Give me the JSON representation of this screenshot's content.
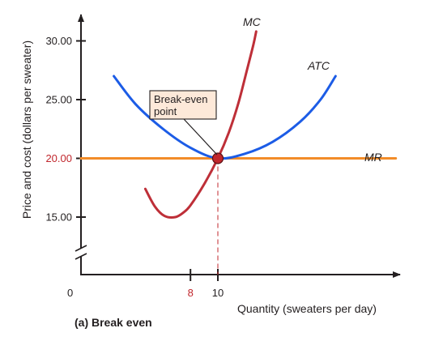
{
  "chart_data": {
    "type": "line",
    "caption": "(a) Break even",
    "xlabel": "Quantity (sweaters per day)",
    "ylabel": "Price and cost (dollars per sweater)",
    "origin_label": "0",
    "x_ticks": [
      {
        "value": 8,
        "label": "8",
        "highlight": true
      },
      {
        "value": 10,
        "label": "10",
        "highlight": false
      }
    ],
    "y_ticks": [
      {
        "value": 15,
        "label": "15.00",
        "highlight": false
      },
      {
        "value": 20,
        "label": "20.00",
        "highlight": true
      },
      {
        "value": 25,
        "label": "25.00",
        "highlight": false
      },
      {
        "value": 30,
        "label": "30.00",
        "highlight": false
      }
    ],
    "xlim": [
      0,
      26
    ],
    "ylim": [
      13.5,
      31.5
    ],
    "axis_break": true,
    "series": [
      {
        "name": "MC",
        "color": "#be2f38",
        "points": [
          [
            4.7,
            17.4
          ],
          [
            5.4,
            15.9
          ],
          [
            6.1,
            15.1
          ],
          [
            6.9,
            15.0
          ],
          [
            7.5,
            15.4
          ],
          [
            8.0,
            16.0
          ],
          [
            9.0,
            17.8
          ],
          [
            10.0,
            20.0
          ],
          [
            10.8,
            22.2
          ],
          [
            11.5,
            24.7
          ],
          [
            12.1,
            27.4
          ],
          [
            12.6,
            29.7
          ],
          [
            12.8,
            30.8
          ]
        ]
      },
      {
        "name": "ATC",
        "color": "#1c5ce6",
        "points": [
          [
            2.4,
            27.0
          ],
          [
            4.0,
            24.6
          ],
          [
            6.0,
            22.5
          ],
          [
            8.0,
            20.9
          ],
          [
            10.0,
            20.0
          ],
          [
            12.0,
            20.4
          ],
          [
            14.0,
            21.4
          ],
          [
            16.0,
            23.1
          ],
          [
            17.5,
            25.0
          ],
          [
            18.6,
            27.0
          ]
        ]
      },
      {
        "name": "MR",
        "color": "#f28c28",
        "points": [
          [
            0,
            20.0
          ],
          [
            23,
            20.0
          ]
        ]
      }
    ],
    "break_even": {
      "x": 10,
      "y": 20,
      "color": "#c1272d"
    },
    "callout": {
      "lines": [
        "Break-even",
        "point"
      ],
      "fill": "#fde9d9"
    },
    "accent_color": "#c1272d"
  }
}
